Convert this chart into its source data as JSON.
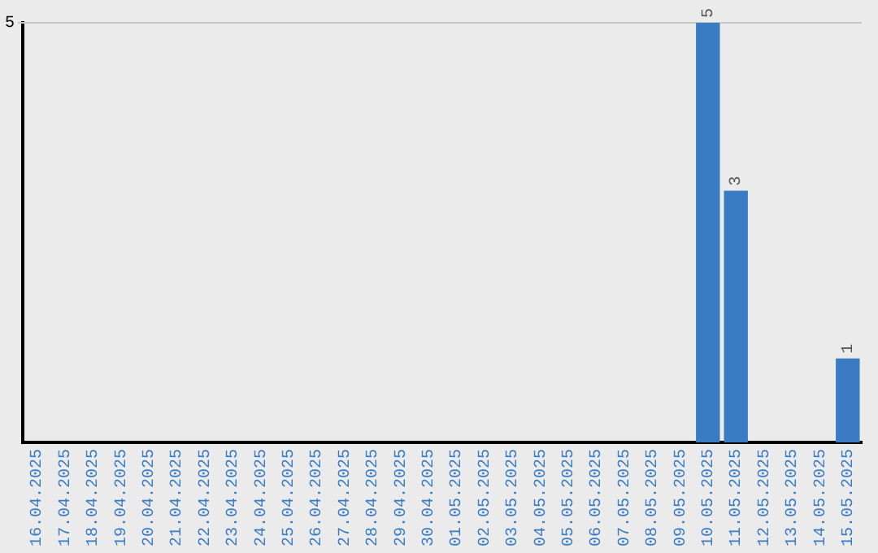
{
  "chart_data": {
    "type": "bar",
    "categories": [
      "16.04.2025",
      "17.04.2025",
      "18.04.2025",
      "19.04.2025",
      "20.04.2025",
      "21.04.2025",
      "22.04.2025",
      "23.04.2025",
      "24.04.2025",
      "25.04.2025",
      "26.04.2025",
      "27.04.2025",
      "28.04.2025",
      "29.04.2025",
      "30.04.2025",
      "01.05.2025",
      "02.05.2025",
      "03.05.2025",
      "04.05.2025",
      "05.05.2025",
      "06.05.2025",
      "07.05.2025",
      "08.05.2025",
      "09.05.2025",
      "10.05.2025",
      "11.05.2025",
      "12.05.2025",
      "13.05.2025",
      "14.05.2025",
      "15.05.2025"
    ],
    "values": [
      null,
      null,
      null,
      null,
      null,
      null,
      null,
      null,
      null,
      null,
      null,
      null,
      null,
      null,
      null,
      null,
      null,
      null,
      null,
      null,
      null,
      null,
      null,
      null,
      5,
      3,
      null,
      null,
      null,
      1
    ],
    "data_labels": true,
    "color": "#3a7cc4",
    "ref_lines": [
      {
        "axis": "y",
        "value": 5,
        "label": "5",
        "color": "#c8c8c8"
      }
    ],
    "legend": false
  }
}
